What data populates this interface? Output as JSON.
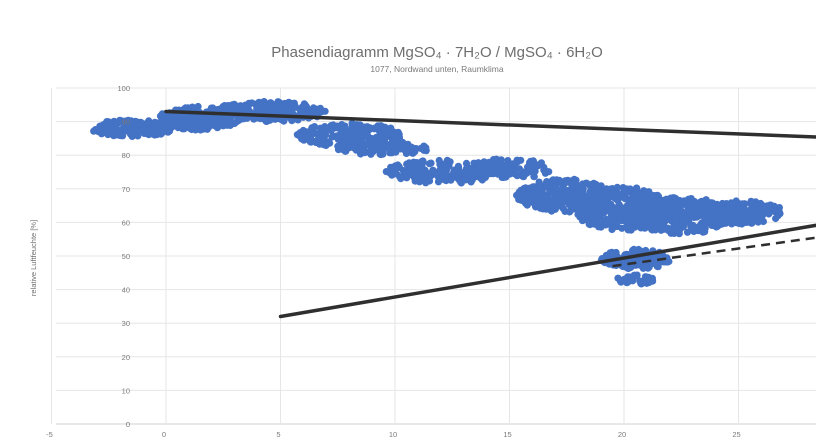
{
  "chart_data": {
    "type": "scatter",
    "title": "Phasendiagramm MgSO₄ · 7H₂O / MgSO₄ · 6H₂O",
    "subtitle": "1077, Nordwand unten, Raumklima",
    "xlabel": "",
    "ylabel": "relative Luftfeuchte [%]",
    "xlim": [
      -5,
      30
    ],
    "ylim": [
      0,
      100
    ],
    "x_ticks": [
      "-5",
      "0",
      "5",
      "10",
      "15",
      "20",
      "25"
    ],
    "y_ticks": [
      "0",
      "10",
      "20",
      "30",
      "40",
      "50",
      "60",
      "70",
      "80",
      "90",
      "100"
    ],
    "grid": true,
    "legend": "none",
    "colors": {
      "points": "#4472c4",
      "lines": "#2f2f2f"
    },
    "series": [
      {
        "type": "scatter",
        "clusters": [
          {
            "cx": -1.5,
            "cy": 88,
            "rx": 1.8,
            "ry": 2.5,
            "n": 160
          },
          {
            "cx": 1.5,
            "cy": 91,
            "rx": 1.8,
            "ry": 3.5,
            "n": 200
          },
          {
            "cx": 4.5,
            "cy": 93,
            "rx": 2.5,
            "ry": 3.0,
            "n": 200
          },
          {
            "cx": 8.0,
            "cy": 86,
            "rx": 2.3,
            "ry": 3.5,
            "n": 180
          },
          {
            "cx": 9.5,
            "cy": 82,
            "rx": 2.0,
            "ry": 2.0,
            "n": 100
          },
          {
            "cx": 12.0,
            "cy": 75,
            "rx": 2.5,
            "ry": 3.5,
            "n": 150
          },
          {
            "cx": 15.0,
            "cy": 76,
            "rx": 1.8,
            "ry": 3.0,
            "n": 110
          },
          {
            "cx": 17.5,
            "cy": 68,
            "rx": 2.2,
            "ry": 5.0,
            "n": 260
          },
          {
            "cx": 20.0,
            "cy": 64,
            "rx": 2.2,
            "ry": 6.5,
            "n": 320
          },
          {
            "cx": 22.5,
            "cy": 62,
            "rx": 2.2,
            "ry": 5.5,
            "n": 280
          },
          {
            "cx": 25.0,
            "cy": 63,
            "rx": 2.0,
            "ry": 3.5,
            "n": 150
          },
          {
            "cx": 20.5,
            "cy": 49,
            "rx": 1.5,
            "ry": 3.0,
            "n": 120
          },
          {
            "cx": 20.5,
            "cy": 43,
            "rx": 0.8,
            "ry": 1.5,
            "n": 40
          }
        ]
      },
      {
        "type": "line",
        "style": "solid",
        "points": [
          [
            0,
            93
          ],
          [
            30,
            85
          ]
        ]
      },
      {
        "type": "line",
        "style": "solid",
        "points": [
          [
            5,
            32
          ],
          [
            30,
            61
          ]
        ]
      },
      {
        "type": "line",
        "style": "dashed",
        "points": [
          [
            19.5,
            47
          ],
          [
            30,
            57
          ]
        ]
      }
    ]
  }
}
